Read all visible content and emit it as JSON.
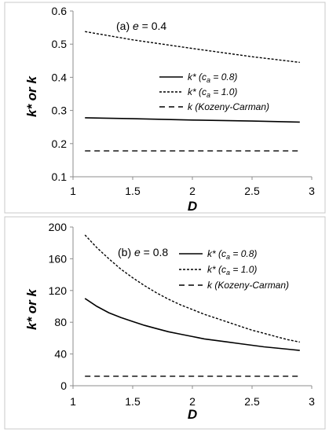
{
  "chart_data": [
    {
      "type": "line",
      "panel_label": {
        "prefix": "(a) ",
        "var": "e",
        "rest": " = 0.4"
      },
      "xlabel": "D",
      "ylabel": "k* or k",
      "xlim": [
        1,
        3
      ],
      "ylim": [
        0.1,
        0.6
      ],
      "xticks": [
        "1",
        "1.5",
        "2",
        "2.5",
        "3"
      ],
      "yticks": [
        "0.1",
        "0.2",
        "0.3",
        "0.4",
        "0.5",
        "0.6"
      ],
      "grid": false,
      "legend_position": "right-center",
      "series": [
        {
          "name": "k* (ca = 0.8)",
          "legend": {
            "pre": "k* (c",
            "sub": "a",
            "post": " = 0.8)"
          },
          "style": "solid",
          "x": [
            1.1,
            1.5,
            2.0,
            2.5,
            2.9
          ],
          "y": [
            0.278,
            0.275,
            0.271,
            0.268,
            0.265
          ]
        },
        {
          "name": "k* (ca = 1.0)",
          "legend": {
            "pre": "k* (c",
            "sub": "a",
            "post": " = 1.0)"
          },
          "style": "dotted",
          "x": [
            1.1,
            1.5,
            2.0,
            2.5,
            2.9
          ],
          "y": [
            0.538,
            0.513,
            0.487,
            0.462,
            0.445
          ]
        },
        {
          "name": "k (Kozeny-Carman)",
          "legend": {
            "pre": "k (Kozeny-Carman)",
            "sub": "",
            "post": ""
          },
          "style": "dashed",
          "x": [
            1.1,
            2.9
          ],
          "y": [
            0.178,
            0.178
          ]
        }
      ]
    },
    {
      "type": "line",
      "panel_label": {
        "prefix": "(b) ",
        "var": "e",
        "rest": " = 0.8"
      },
      "xlabel": "D",
      "ylabel": "k* or k",
      "xlim": [
        1,
        3
      ],
      "ylim": [
        0,
        200
      ],
      "xticks": [
        "1",
        "1.5",
        "2",
        "2.5",
        "3"
      ],
      "yticks": [
        "0",
        "40",
        "80",
        "120",
        "160",
        "200"
      ],
      "grid": false,
      "legend_position": "top-right",
      "series": [
        {
          "name": "k* (ca = 0.8)",
          "legend": {
            "pre": "k* (c",
            "sub": "a",
            "post": " = 0.8)"
          },
          "style": "solid",
          "x": [
            1.1,
            1.2,
            1.3,
            1.4,
            1.5,
            1.6,
            1.7,
            1.8,
            1.9,
            2.0,
            2.1,
            2.2,
            2.3,
            2.4,
            2.5,
            2.6,
            2.7,
            2.8,
            2.9
          ],
          "y": [
            110,
            100,
            92,
            86,
            81,
            76,
            72,
            68,
            65,
            62,
            59,
            57,
            55,
            53,
            51,
            49,
            47.5,
            46,
            44.5
          ]
        },
        {
          "name": "k* (ca = 1.0)",
          "legend": {
            "pre": "k* (c",
            "sub": "a",
            "post": " = 1.0)"
          },
          "style": "dotted",
          "x": [
            1.1,
            1.2,
            1.3,
            1.4,
            1.5,
            1.6,
            1.7,
            1.8,
            1.9,
            2.0,
            2.1,
            2.2,
            2.3,
            2.4,
            2.5,
            2.6,
            2.7,
            2.8,
            2.9
          ],
          "y": [
            190,
            174,
            160,
            147,
            136,
            126,
            117,
            109,
            102,
            96,
            90,
            85,
            80,
            75,
            70,
            66,
            62,
            58,
            55
          ]
        },
        {
          "name": "k (Kozeny-Carman)",
          "legend": {
            "pre": "k (Kozeny-Carman)",
            "sub": "",
            "post": ""
          },
          "style": "dashed",
          "x": [
            1.1,
            2.9
          ],
          "y": [
            12,
            12
          ]
        }
      ]
    }
  ]
}
